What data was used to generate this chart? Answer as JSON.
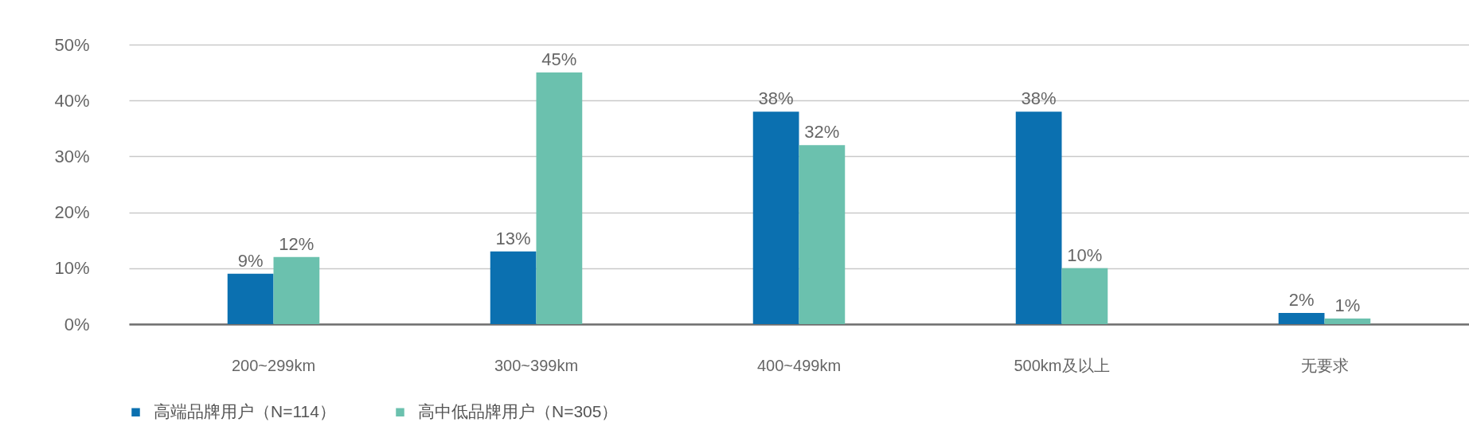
{
  "chart_data": {
    "type": "bar",
    "categories": [
      "200~299km",
      "300~399km",
      "400~499km",
      "500km及以上",
      "无要求"
    ],
    "series": [
      {
        "name": "高端品牌用户（N=114）",
        "color": "#0b70b0",
        "values": [
          9,
          13,
          38,
          38,
          2
        ],
        "value_labels": [
          "9%",
          "13%",
          "38%",
          "38%",
          "2%"
        ]
      },
      {
        "name": "高中低品牌用户（N=305）",
        "color": "#6bc1ae",
        "values": [
          12,
          45,
          32,
          10,
          1
        ],
        "value_labels": [
          "12%",
          "45%",
          "32%",
          "10%",
          "1%"
        ]
      }
    ],
    "ylim": [
      0,
      50
    ],
    "yticks": [
      {
        "value": 0,
        "label": "0%"
      },
      {
        "value": 10,
        "label": "10%"
      },
      {
        "value": 20,
        "label": "20%"
      },
      {
        "value": 30,
        "label": "30%"
      },
      {
        "value": 40,
        "label": "40%"
      },
      {
        "value": 50,
        "label": "50%"
      }
    ],
    "grid": "y",
    "legend": "bottom left"
  }
}
